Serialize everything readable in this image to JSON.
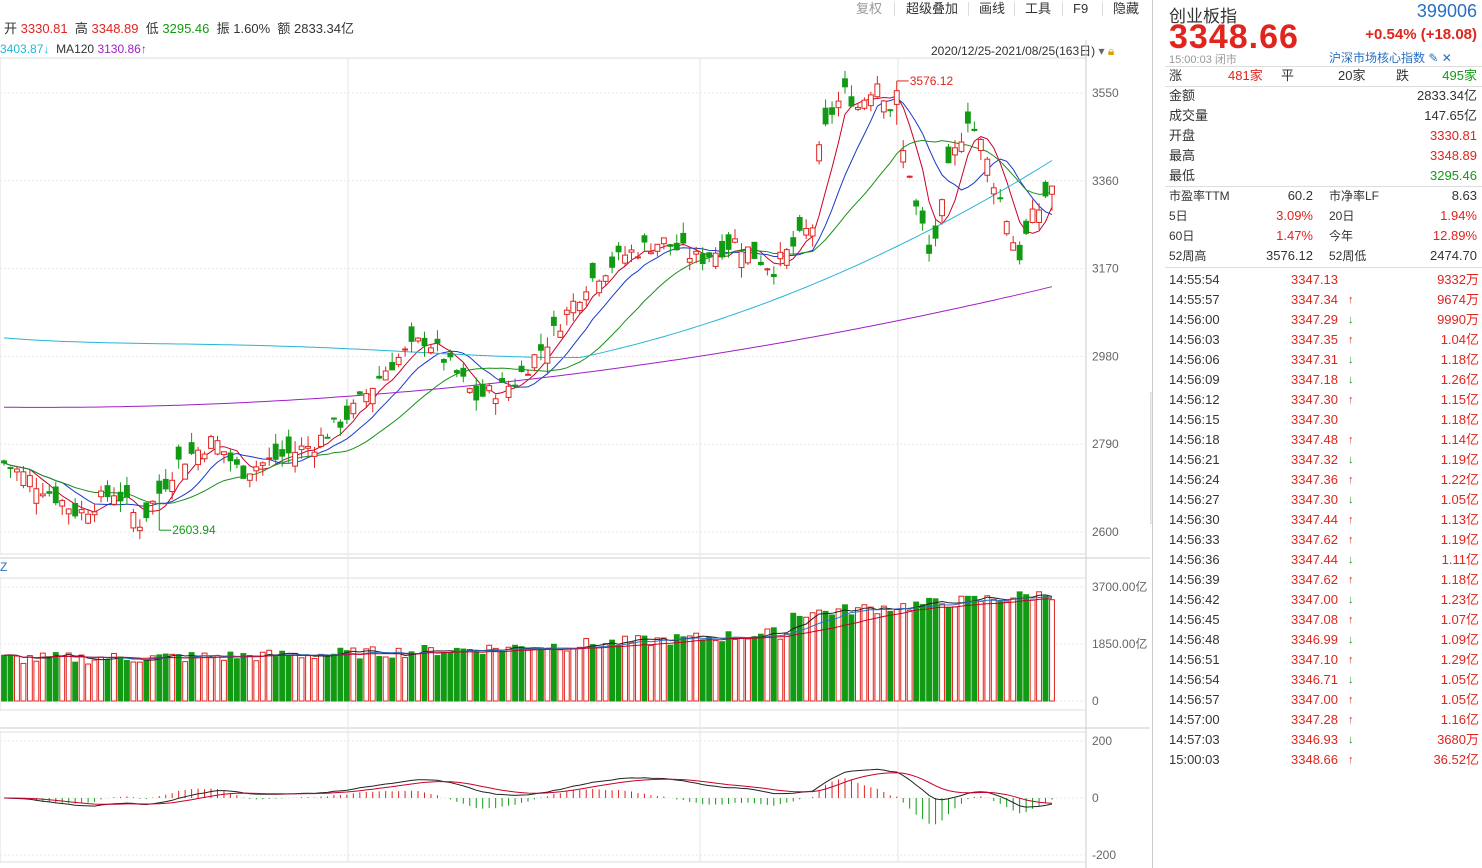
{
  "toolbar": {
    "items": [
      "复权",
      "超级叠加",
      "画线",
      "工具",
      "F9",
      "隐藏"
    ]
  },
  "ohlc": {
    "open_label": "开",
    "open": "3330.81",
    "high_label": "高",
    "high": "3348.89",
    "low_label": "低",
    "low": "3295.46",
    "amp_label": "振",
    "amp": "1.60%",
    "amt_label": "额",
    "amt": "2833.34亿"
  },
  "ma": {
    "ma60_value": "3403.87↓",
    "ma120_label": "MA120",
    "ma120_value": "3130.86↑"
  },
  "range": "2020/12/25-2021/08/25(163日)",
  "price_axis": [
    "3550",
    "3360",
    "3170",
    "2980",
    "2790",
    "2600"
  ],
  "vol_axis": [
    "3700.00亿",
    "1850.00亿",
    "0"
  ],
  "macd_axis": [
    "200",
    "0",
    "-200"
  ],
  "annotations": {
    "high": "3576.12",
    "low": "2603.94",
    "vol_tag": "Z"
  },
  "colors": {
    "up": "#e0241e",
    "down": "#139a15",
    "ma5": "#c8002a",
    "ma10": "#1b39c8",
    "ma20": "#1b8f1b",
    "ma60": "#25b5d8",
    "ma120": "#a020c8"
  },
  "chart_data": {
    "type": "candlestick",
    "x_range": [
      "2020/12/25",
      "2021/08/25"
    ],
    "days": 163,
    "ylim": [
      2600,
      3576.12
    ],
    "latest": {
      "open": 3330.81,
      "high": 3348.89,
      "low": 3295.46,
      "close": 3348.66
    },
    "period_high": 3576.12,
    "period_low": 2603.94,
    "ma60": 3403.87,
    "ma120": 3130.86,
    "volume_ylim": [
      0,
      3700
    ],
    "macd_ylim": [
      -200,
      200
    ]
  },
  "panel": {
    "name": "创业板指",
    "code": "399006",
    "price": "3348.66",
    "change": "+0.54% (+18.08)",
    "time": "15:00:03 闭市",
    "tag": "沪深市场核心指数",
    "breadth": {
      "up_label": "涨",
      "up": "481家",
      "flat_label": "平",
      "flat": "20家",
      "down_label": "跌",
      "down": "495家"
    },
    "stats": [
      {
        "label": "金额",
        "value": "2833.34亿",
        "color": "#333"
      },
      {
        "label": "成交量",
        "value": "147.65亿",
        "color": "#333"
      },
      {
        "label": "开盘",
        "value": "3330.81",
        "color": "#e0241e"
      },
      {
        "label": "最高",
        "value": "3348.89",
        "color": "#e0241e"
      },
      {
        "label": "最低",
        "value": "3295.46",
        "color": "#139a15"
      }
    ],
    "ratios": [
      {
        "l1": "市盈率TTM",
        "v1": "60.2",
        "c1": "#333",
        "l2": "市净率LF",
        "v2": "8.63",
        "c2": "#333"
      },
      {
        "l1": "5日",
        "v1": "3.09%",
        "c1": "#e0241e",
        "l2": "20日",
        "v2": "1.94%",
        "c2": "#e0241e"
      },
      {
        "l1": "60日",
        "v1": "1.47%",
        "c1": "#e0241e",
        "l2": "今年",
        "v2": "12.89%",
        "c2": "#e0241e"
      },
      {
        "l1": "52周高",
        "v1": "3576.12",
        "c1": "#333",
        "l2": "52周低",
        "v2": "2474.70",
        "c2": "#333"
      }
    ],
    "ticks": [
      {
        "t": "14:55:54",
        "p": "3347.13",
        "a": "",
        "v": "9332万"
      },
      {
        "t": "14:55:57",
        "p": "3347.34",
        "a": "↑",
        "v": "9674万"
      },
      {
        "t": "14:56:00",
        "p": "3347.29",
        "a": "↓",
        "v": "9990万"
      },
      {
        "t": "14:56:03",
        "p": "3347.35",
        "a": "↑",
        "v": "1.04亿"
      },
      {
        "t": "14:56:06",
        "p": "3347.31",
        "a": "↓",
        "v": "1.18亿"
      },
      {
        "t": "14:56:09",
        "p": "3347.18",
        "a": "↓",
        "v": "1.26亿"
      },
      {
        "t": "14:56:12",
        "p": "3347.30",
        "a": "↑",
        "v": "1.15亿"
      },
      {
        "t": "14:56:15",
        "p": "3347.30",
        "a": "",
        "v": "1.18亿"
      },
      {
        "t": "14:56:18",
        "p": "3347.48",
        "a": "↑",
        "v": "1.14亿"
      },
      {
        "t": "14:56:21",
        "p": "3347.32",
        "a": "↓",
        "v": "1.19亿"
      },
      {
        "t": "14:56:24",
        "p": "3347.36",
        "a": "↑",
        "v": "1.22亿"
      },
      {
        "t": "14:56:27",
        "p": "3347.30",
        "a": "↓",
        "v": "1.05亿"
      },
      {
        "t": "14:56:30",
        "p": "3347.44",
        "a": "↑",
        "v": "1.13亿"
      },
      {
        "t": "14:56:33",
        "p": "3347.62",
        "a": "↑",
        "v": "1.19亿"
      },
      {
        "t": "14:56:36",
        "p": "3347.44",
        "a": "↓",
        "v": "1.11亿"
      },
      {
        "t": "14:56:39",
        "p": "3347.62",
        "a": "↑",
        "v": "1.18亿"
      },
      {
        "t": "14:56:42",
        "p": "3347.00",
        "a": "↓",
        "v": "1.23亿"
      },
      {
        "t": "14:56:45",
        "p": "3347.08",
        "a": "↑",
        "v": "1.07亿"
      },
      {
        "t": "14:56:48",
        "p": "3346.99",
        "a": "↓",
        "v": "1.09亿"
      },
      {
        "t": "14:56:51",
        "p": "3347.10",
        "a": "↑",
        "v": "1.29亿"
      },
      {
        "t": "14:56:54",
        "p": "3346.71",
        "a": "↓",
        "v": "1.05亿"
      },
      {
        "t": "14:56:57",
        "p": "3347.00",
        "a": "↑",
        "v": "1.05亿"
      },
      {
        "t": "14:57:00",
        "p": "3347.28",
        "a": "↑",
        "v": "1.16亿"
      },
      {
        "t": "14:57:03",
        "p": "3346.93",
        "a": "↓",
        "v": "3680万"
      },
      {
        "t": "15:00:03",
        "p": "3348.66",
        "a": "↑",
        "v": "36.52亿"
      }
    ]
  }
}
